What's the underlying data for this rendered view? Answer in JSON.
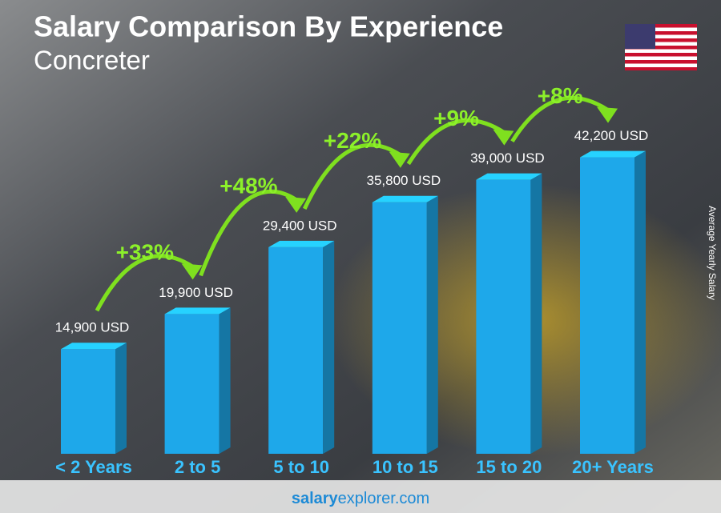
{
  "chart_data": {
    "type": "bar3d",
    "title": "Salary Comparison By Experience",
    "subtitle": "Concreter",
    "y_label": "Average Yearly Salary",
    "categories": [
      "< 2 Years",
      "2 to 5",
      "5 to 10",
      "10 to 15",
      "15 to 20",
      "20+ Years"
    ],
    "values": [
      14900,
      19900,
      29400,
      35800,
      39000,
      42200
    ],
    "value_labels": [
      "14,900 USD",
      "19,900 USD",
      "29,400 USD",
      "35,800 USD",
      "39,000 USD",
      "42,200 USD"
    ],
    "changes": [
      "+33%",
      "+48%",
      "+22%",
      "+9%",
      "+8%"
    ],
    "color": "#1ea8ea",
    "ylim": [
      0,
      45000
    ],
    "source": {
      "brand": "salary",
      "domain": "explorer.com"
    }
  }
}
